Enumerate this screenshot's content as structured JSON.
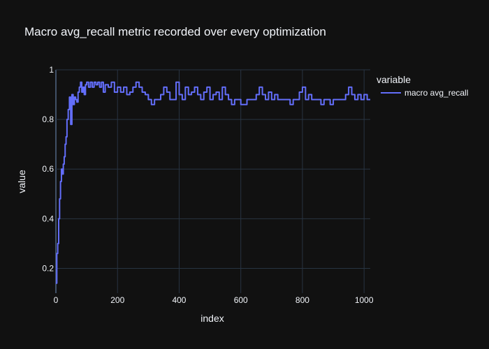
{
  "chart_data": {
    "type": "line",
    "title": "Macro avg_recall metric recorded over every optimization",
    "xlabel": "index",
    "ylabel": "value",
    "xlim": [
      0,
      1020
    ],
    "ylim": [
      0.1,
      1.0
    ],
    "x_ticks": [
      0,
      200,
      400,
      600,
      800,
      1000
    ],
    "y_ticks": [
      0.2,
      0.4,
      0.6,
      0.8,
      1.0
    ],
    "y_tick_labels": [
      "0.2",
      "0.4",
      "0.6",
      "0.8",
      "1"
    ],
    "grid": true,
    "legend": {
      "title": "variable",
      "placement": "top-right outside"
    },
    "series": [
      {
        "name": "macro avg_recall",
        "color": "#636efa",
        "x": [
          0,
          3,
          6,
          9,
          12,
          15,
          18,
          21,
          24,
          27,
          30,
          33,
          36,
          40,
          44,
          48,
          52,
          56,
          60,
          64,
          68,
          72,
          76,
          80,
          84,
          88,
          92,
          96,
          100,
          106,
          112,
          118,
          124,
          130,
          136,
          142,
          148,
          154,
          160,
          170,
          180,
          190,
          200,
          210,
          220,
          230,
          240,
          250,
          260,
          270,
          280,
          290,
          300,
          310,
          320,
          330,
          340,
          350,
          360,
          370,
          380,
          390,
          400,
          410,
          420,
          430,
          440,
          450,
          460,
          470,
          480,
          490,
          500,
          510,
          520,
          530,
          540,
          550,
          560,
          570,
          580,
          590,
          600,
          610,
          620,
          630,
          640,
          650,
          660,
          670,
          680,
          690,
          700,
          710,
          720,
          730,
          740,
          750,
          760,
          770,
          780,
          790,
          800,
          810,
          820,
          830,
          840,
          850,
          860,
          870,
          880,
          890,
          900,
          910,
          920,
          930,
          940,
          950,
          960,
          970,
          980,
          990,
          1000,
          1010,
          1020
        ],
        "y": [
          0.14,
          0.26,
          0.3,
          0.4,
          0.48,
          0.55,
          0.6,
          0.58,
          0.62,
          0.65,
          0.7,
          0.73,
          0.8,
          0.84,
          0.89,
          0.78,
          0.9,
          0.86,
          0.89,
          0.88,
          0.87,
          0.91,
          0.93,
          0.95,
          0.91,
          0.93,
          0.9,
          0.94,
          0.95,
          0.93,
          0.95,
          0.93,
          0.95,
          0.94,
          0.95,
          0.93,
          0.95,
          0.91,
          0.94,
          0.93,
          0.95,
          0.91,
          0.93,
          0.91,
          0.93,
          0.9,
          0.91,
          0.93,
          0.95,
          0.93,
          0.91,
          0.9,
          0.88,
          0.86,
          0.88,
          0.88,
          0.9,
          0.93,
          0.91,
          0.88,
          0.88,
          0.95,
          0.9,
          0.88,
          0.93,
          0.9,
          0.91,
          0.93,
          0.9,
          0.88,
          0.91,
          0.93,
          0.88,
          0.9,
          0.91,
          0.88,
          0.93,
          0.9,
          0.88,
          0.86,
          0.88,
          0.88,
          0.86,
          0.86,
          0.88,
          0.88,
          0.88,
          0.9,
          0.93,
          0.9,
          0.88,
          0.91,
          0.88,
          0.9,
          0.88,
          0.88,
          0.88,
          0.88,
          0.86,
          0.88,
          0.88,
          0.91,
          0.93,
          0.88,
          0.9,
          0.88,
          0.88,
          0.88,
          0.86,
          0.88,
          0.88,
          0.86,
          0.88,
          0.88,
          0.88,
          0.88,
          0.9,
          0.93,
          0.9,
          0.88,
          0.9,
          0.88,
          0.9,
          0.88,
          0.88
        ]
      }
    ]
  }
}
